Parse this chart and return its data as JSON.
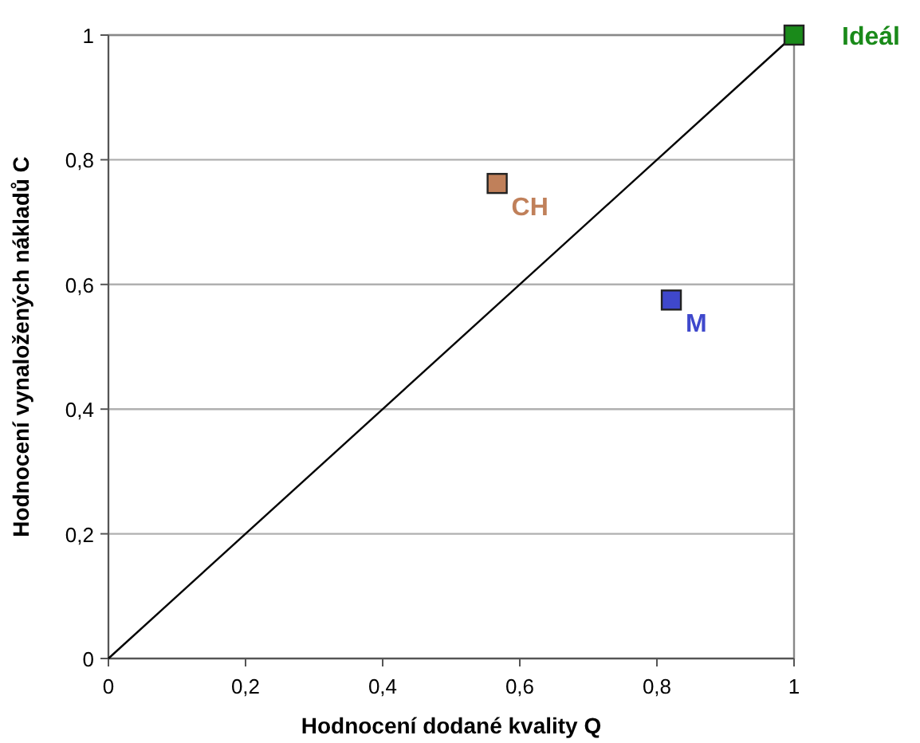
{
  "chart_data": {
    "type": "scatter",
    "xlabel": "Hodnocení dodané kvality Q",
    "ylabel": "Hodnocení vynaložených nákladů C",
    "xlim": [
      0,
      1
    ],
    "ylim": [
      0,
      1
    ],
    "xticks": [
      0,
      {
        "value": 0.2,
        "label": "0,2"
      },
      {
        "value": 0.4,
        "label": "0,4"
      },
      {
        "value": 0.6,
        "label": "0,6"
      },
      {
        "value": 0.8,
        "label": "0,8"
      },
      1
    ],
    "yticks": [
      0,
      {
        "value": 0.2,
        "label": "0,2"
      },
      {
        "value": 0.4,
        "label": "0,4"
      },
      {
        "value": 0.6,
        "label": "0,6"
      },
      {
        "value": 0.8,
        "label": "0,8"
      },
      1
    ],
    "grid": "y",
    "series": [
      {
        "type": "line",
        "marker": "none",
        "color": "#000000",
        "x": [
          0,
          1
        ],
        "values": [
          0,
          1
        ]
      },
      {
        "name": "CH",
        "marker": "square",
        "color": "#c0805a",
        "x": [
          0.567
        ],
        "values": [
          0.762
        ]
      },
      {
        "name": "M",
        "marker": "square",
        "color": "#3f48cc",
        "x": [
          0.821
        ],
        "values": [
          0.575
        ]
      },
      {
        "name": "Ideál",
        "marker": "square",
        "color": "#1a8a1a",
        "x": [
          1.0
        ],
        "values": [
          1.0
        ]
      }
    ]
  }
}
